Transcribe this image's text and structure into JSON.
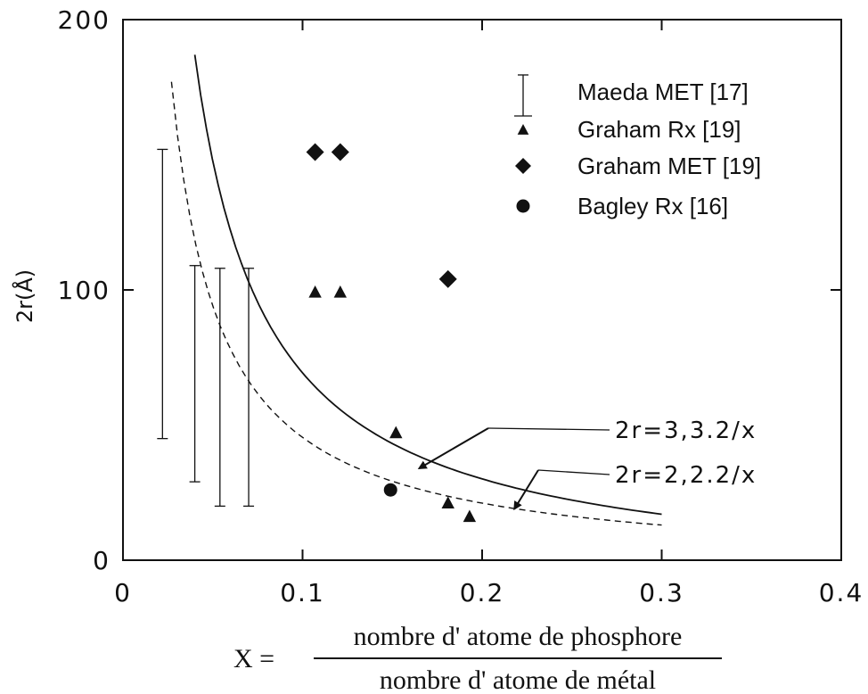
{
  "chart_data": {
    "type": "scatter",
    "xlim": [
      0,
      0.4
    ],
    "ylim": [
      0,
      200
    ],
    "x_ticks": [
      "0",
      "0.1",
      "0.2",
      "0.3",
      "0.4"
    ],
    "y_ticks": [
      "0",
      "100",
      "200"
    ],
    "ylabel": "2r(Å)",
    "xlabel": {
      "prefix": "X =",
      "numerator": "nombre d' atome de phosphore",
      "denominator": "nombre d' atome de métal"
    },
    "series": [
      {
        "name": "Maeda MET [17]",
        "kind": "errorbar",
        "points": [
          {
            "x": 0.022,
            "low": 45,
            "high": 152
          },
          {
            "x": 0.04,
            "low": 29,
            "high": 109
          },
          {
            "x": 0.054,
            "low": 20,
            "high": 108
          },
          {
            "x": 0.07,
            "low": 20,
            "high": 108
          }
        ]
      },
      {
        "name": "Graham Rx [19]",
        "kind": "triangle",
        "points": [
          {
            "x": 0.107,
            "y": 99
          },
          {
            "x": 0.121,
            "y": 99
          },
          {
            "x": 0.152,
            "y": 47
          },
          {
            "x": 0.181,
            "y": 21
          },
          {
            "x": 0.193,
            "y": 16
          }
        ]
      },
      {
        "name": "Graham MET [19]",
        "kind": "diamond",
        "points": [
          {
            "x": 0.107,
            "y": 151
          },
          {
            "x": 0.121,
            "y": 151
          },
          {
            "x": 0.181,
            "y": 104
          }
        ]
      },
      {
        "name": "Bagley Rx [16]",
        "kind": "circle",
        "points": [
          {
            "x": 0.149,
            "y": 26
          }
        ]
      }
    ],
    "curves": [
      {
        "label": "2r=3,3.2/x",
        "style": "solid",
        "x": [
          0.04,
          0.3
        ],
        "y": [
          187,
          17
        ]
      },
      {
        "label": "2r=2,2.2/x",
        "style": "dashed",
        "x": [
          0.027,
          0.3
        ],
        "y": [
          177,
          13
        ]
      }
    ],
    "annotations": [
      {
        "text": "2r=3,3.2/x",
        "arrow_to": {
          "x": 0.165,
          "y": 34
        }
      },
      {
        "text": "2r=2,2.2/x",
        "arrow_to": {
          "x": 0.218,
          "y": 19
        }
      }
    ],
    "grid": false,
    "legend_position": "top-right"
  }
}
